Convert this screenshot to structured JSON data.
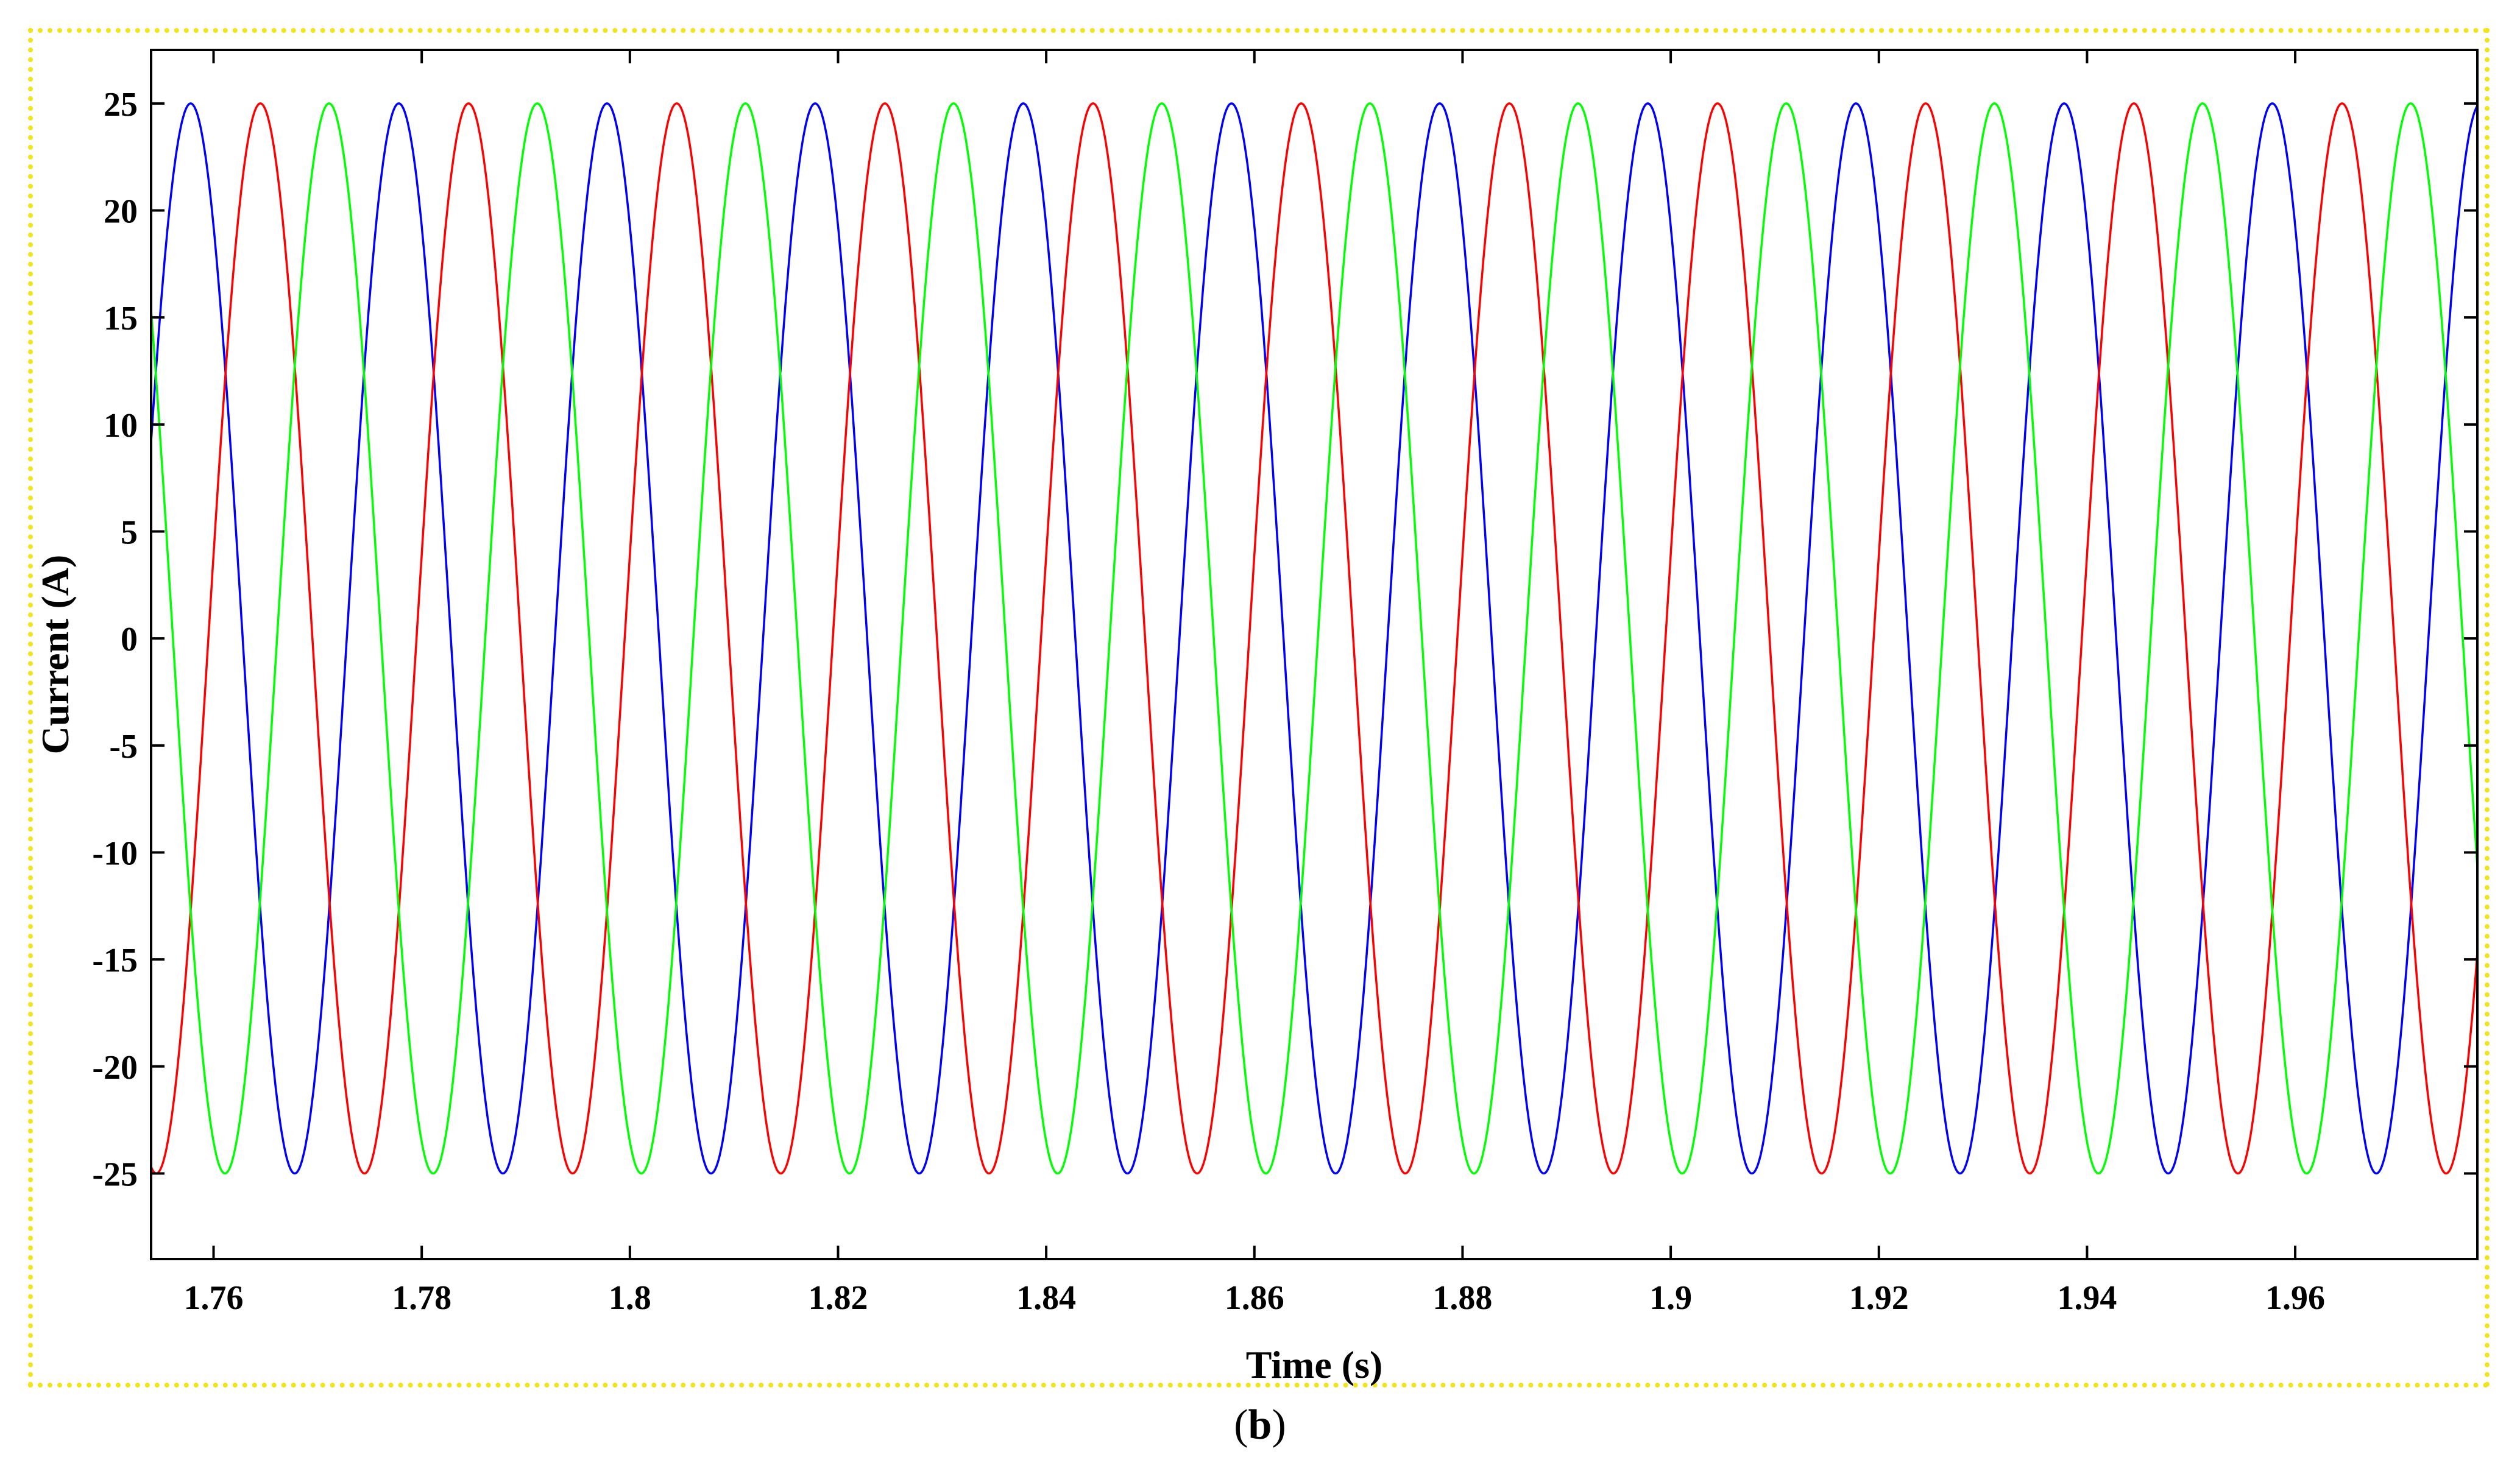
{
  "caption": {
    "open": "(",
    "letter": "b",
    "close": ")"
  },
  "chart_data": {
    "type": "line",
    "title": "",
    "xlabel": "Time (s)",
    "ylabel": "Current (A)",
    "xlim": [
      1.754,
      1.9775
    ],
    "ylim": [
      -29,
      27.5
    ],
    "grid": false,
    "x_ticks": [
      1.76,
      1.78,
      1.8,
      1.82,
      1.84,
      1.86,
      1.88,
      1.9,
      1.92,
      1.94,
      1.96
    ],
    "x_tick_labels": [
      "1.76",
      "1.78",
      "1.8",
      "1.82",
      "1.84",
      "1.86",
      "1.88",
      "1.9",
      "1.92",
      "1.94",
      "1.96"
    ],
    "y_ticks": [
      25,
      20,
      15,
      10,
      5,
      0,
      -5,
      -10,
      -15,
      -20,
      -25
    ],
    "y_tick_labels": [
      "25",
      "20",
      "15",
      "10",
      "5",
      "0",
      "-5",
      "-10",
      "-15",
      "-20",
      "-25"
    ],
    "series": [
      {
        "color": "#0000ff",
        "amplitude": 25,
        "frequency_hz": 50,
        "peak_time_s": 1.7578
      },
      {
        "color": "#ff0000",
        "amplitude": 25,
        "frequency_hz": 50,
        "peak_time_s": 1.7645
      },
      {
        "color": "#00ff00",
        "amplitude": 25,
        "frequency_hz": 50,
        "peak_time_s": 1.7711
      }
    ]
  }
}
